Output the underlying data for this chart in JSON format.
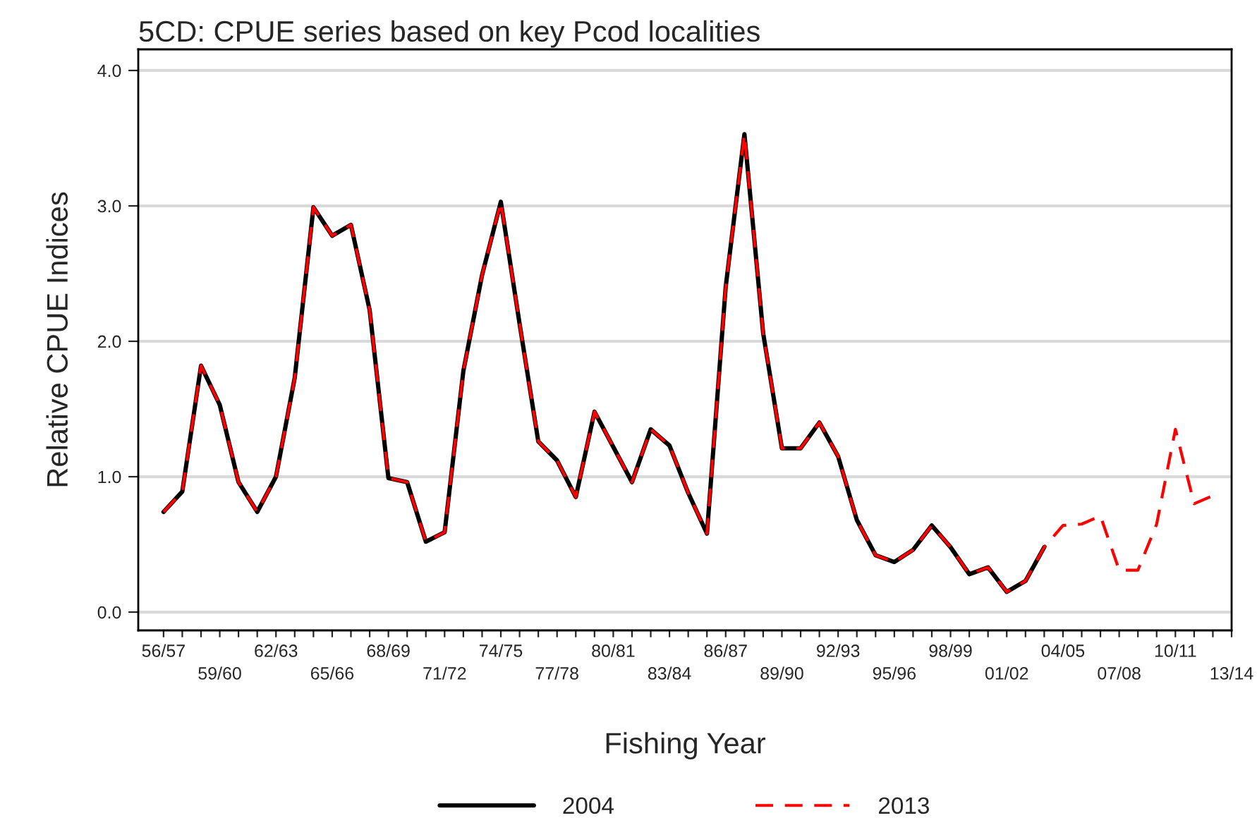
{
  "chart_data": {
    "type": "line",
    "title": "5CD: CPUE series based on key Pcod localities",
    "xlabel": "Fishing Year",
    "ylabel": "Relative CPUE Indices",
    "categories": [
      "56/57",
      null,
      null,
      "59/60",
      null,
      null,
      "62/63",
      null,
      null,
      "65/66",
      null,
      null,
      "68/69",
      null,
      null,
      "71/72",
      null,
      null,
      "74/75",
      null,
      null,
      "77/78",
      null,
      null,
      "80/81",
      null,
      null,
      "83/84",
      null,
      null,
      "86/87",
      null,
      null,
      "89/90",
      null,
      null,
      "92/93",
      null,
      null,
      "95/96",
      null,
      null,
      "98/99",
      null,
      null,
      "01/02",
      null,
      null,
      "04/05",
      null,
      null,
      "07/08",
      null,
      null,
      "10/11",
      null,
      null,
      "13/14"
    ],
    "series": [
      {
        "name": "2004",
        "color": "#000000",
        "line_style": "solid",
        "values": [
          0.74,
          0.89,
          1.82,
          1.53,
          0.96,
          0.74,
          1.0,
          1.73,
          2.99,
          2.78,
          2.86,
          2.23,
          0.99,
          0.96,
          0.52,
          0.59,
          1.78,
          2.49,
          3.03,
          2.13,
          1.26,
          1.12,
          0.85,
          1.48,
          1.22,
          0.96,
          1.35,
          1.23,
          0.88,
          0.58,
          2.4,
          3.53,
          2.06,
          1.21,
          1.21,
          1.4,
          1.15,
          0.68,
          0.42,
          0.37,
          0.46,
          0.64,
          0.48,
          0.28,
          0.33,
          0.15,
          0.23,
          0.48,
          null,
          null,
          null,
          null,
          null,
          null,
          null,
          null,
          null,
          null
        ]
      },
      {
        "name": "2013",
        "color": "#ff0000",
        "line_style": "dashed",
        "values": [
          0.74,
          0.89,
          1.82,
          1.53,
          0.96,
          0.74,
          1.0,
          1.73,
          2.99,
          2.78,
          2.86,
          2.23,
          0.99,
          0.96,
          0.52,
          0.59,
          1.78,
          2.49,
          3.03,
          2.13,
          1.26,
          1.12,
          0.85,
          1.48,
          1.22,
          0.96,
          1.35,
          1.23,
          0.88,
          0.58,
          2.4,
          3.53,
          2.06,
          1.21,
          1.21,
          1.4,
          1.15,
          0.68,
          0.42,
          0.37,
          0.46,
          0.64,
          0.48,
          0.28,
          0.33,
          0.15,
          0.23,
          0.48,
          0.64,
          0.65,
          0.71,
          0.31,
          0.31,
          0.65,
          1.35,
          0.8,
          0.86,
          null
        ]
      }
    ],
    "ylim": [
      -0.135,
      4.156
    ],
    "yticks": [
      {
        "value": 0,
        "label": "0.0"
      },
      {
        "value": 1,
        "label": "1.0"
      },
      {
        "value": 2,
        "label": "2.0"
      },
      {
        "value": 3,
        "label": "3.0"
      },
      {
        "value": 4,
        "label": "4.0"
      }
    ],
    "grid": "y",
    "legend": "bottom"
  }
}
